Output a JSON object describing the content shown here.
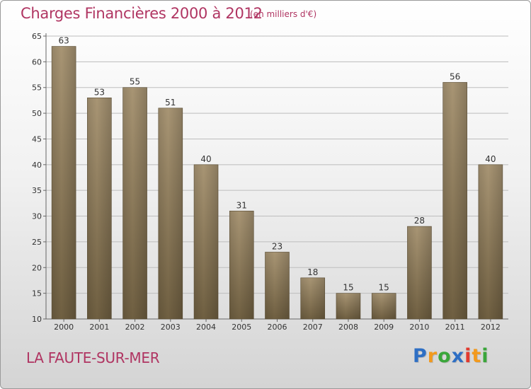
{
  "title": "Charges Financières 2000 à 2012",
  "subtitle": "(en milliers d'€)",
  "town": "LA FAUTE-SUR-MER",
  "brand": {
    "letters": [
      "P",
      "r",
      "o",
      "x",
      "i",
      "t",
      "i"
    ],
    "colors": [
      "#2e6fc4",
      "#f29a1d",
      "#3aa63a",
      "#2e6fc4",
      "#e23a2e",
      "#f29a1d",
      "#3aa63a"
    ]
  },
  "colors": {
    "accent": "#b03562",
    "bar_top": "#a89574",
    "bar_bottom": "#6f5f41",
    "grid": "#bdbdbd",
    "axis_text": "#333333"
  },
  "chart_data": {
    "type": "bar",
    "title": "Charges Financières 2000 à 2012",
    "subtitle": "(en milliers d'€)",
    "xlabel": "",
    "ylabel": "",
    "categories": [
      "2000",
      "2001",
      "2002",
      "2003",
      "2004",
      "2005",
      "2006",
      "2007",
      "2008",
      "2009",
      "2010",
      "2011",
      "2012"
    ],
    "values": [
      63,
      53,
      55,
      51,
      40,
      31,
      23,
      18,
      15,
      15,
      28,
      56,
      40
    ],
    "ylim": [
      10,
      65
    ],
    "yticks": [
      10,
      15,
      20,
      25,
      30,
      35,
      40,
      45,
      50,
      55,
      60,
      65
    ],
    "grid": true,
    "data_labels": true
  }
}
